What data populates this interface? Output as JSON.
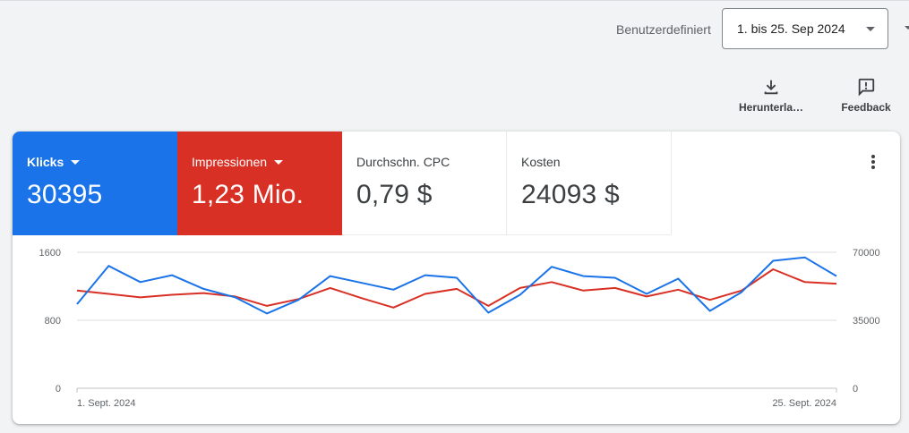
{
  "header": {
    "range_label": "Benutzerdefiniert",
    "range_value": "1. bis 25. Sep 2024"
  },
  "actions": {
    "download_label": "Herunterla…",
    "download_icon": "download-icon",
    "feedback_label": "Feedback",
    "feedback_icon": "feedback-icon"
  },
  "metrics": [
    {
      "label": "Klicks",
      "value": "30395",
      "color": "#1a73e8",
      "selected": true
    },
    {
      "label": "Impressionen",
      "value": "1,23 Mio.",
      "color": "#d93025",
      "selected": true
    },
    {
      "label": "Durchschn. CPC",
      "value": "0,79 $",
      "selected": false
    },
    {
      "label": "Kosten",
      "value": "24093 $",
      "selected": false
    }
  ],
  "chart_data": {
    "type": "line",
    "x_labels": [
      "1. Sept. 2024",
      "25. Sept. 2024"
    ],
    "x": [
      "1. Sept.",
      "2. Sept.",
      "3. Sept.",
      "4. Sept.",
      "5. Sept.",
      "6. Sept.",
      "7. Sept.",
      "8. Sept.",
      "9. Sept.",
      "10. Sept.",
      "11. Sept.",
      "12. Sept.",
      "13. Sept.",
      "14. Sept.",
      "15. Sept.",
      "16. Sept.",
      "17. Sept.",
      "18. Sept.",
      "19. Sept.",
      "20. Sept.",
      "21. Sept.",
      "22. Sept.",
      "23. Sept.",
      "24. Sept.",
      "25. Sept."
    ],
    "y_left": {
      "ticks": [
        "0",
        "800",
        "1600"
      ],
      "range": [
        0,
        1600
      ]
    },
    "y_right": {
      "ticks": [
        "0",
        "35000",
        "70000"
      ],
      "range": [
        0,
        70000
      ]
    },
    "series": [
      {
        "name": "Klicks",
        "color": "#1a73e8",
        "axis": "left",
        "values": [
          990,
          1440,
          1250,
          1330,
          1170,
          1070,
          880,
          1040,
          1320,
          1240,
          1160,
          1330,
          1300,
          890,
          1100,
          1430,
          1320,
          1300,
          1110,
          1290,
          910,
          1130,
          1500,
          1540,
          1320
        ]
      },
      {
        "name": "Impressionen",
        "color": "#d93025",
        "axis": "left",
        "values": [
          1150,
          1110,
          1070,
          1100,
          1120,
          1080,
          970,
          1050,
          1180,
          1060,
          950,
          1110,
          1170,
          970,
          1180,
          1250,
          1150,
          1180,
          1080,
          1160,
          1040,
          1150,
          1400,
          1250,
          1230
        ]
      }
    ]
  }
}
